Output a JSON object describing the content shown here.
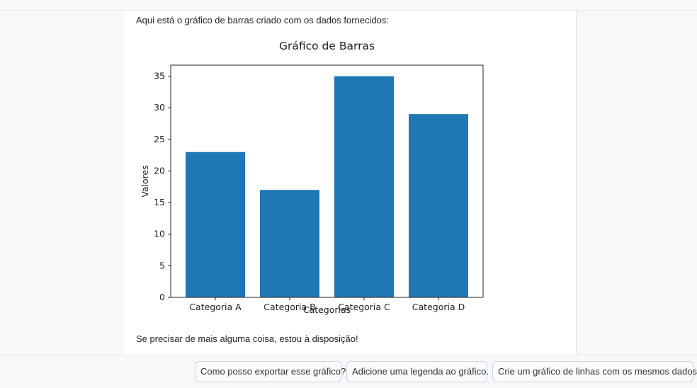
{
  "message": {
    "intro": "Aqui está o gráfico de barras criado com os dados fornecidos:",
    "outro": "Se precisar de mais alguma coisa, estou à disposição!"
  },
  "chart_data": {
    "type": "bar",
    "title": "Gráfico de Barras",
    "xlabel": "Categorias",
    "ylabel": "Valores",
    "categories": [
      "Categoria A",
      "Categoria B",
      "Categoria C",
      "Categoria D"
    ],
    "values": [
      23,
      17,
      35,
      29
    ],
    "ylim": [
      0,
      36.75
    ],
    "yticks": [
      0,
      5,
      10,
      15,
      20,
      25,
      30,
      35
    ],
    "bar_color": "#1f77b4",
    "grid": false
  },
  "suggestions": [
    "Como posso exportar esse gráfico?",
    "Adicione uma legenda ao gráfico.",
    "Crie um gráfico de linhas com os mesmos dados."
  ]
}
